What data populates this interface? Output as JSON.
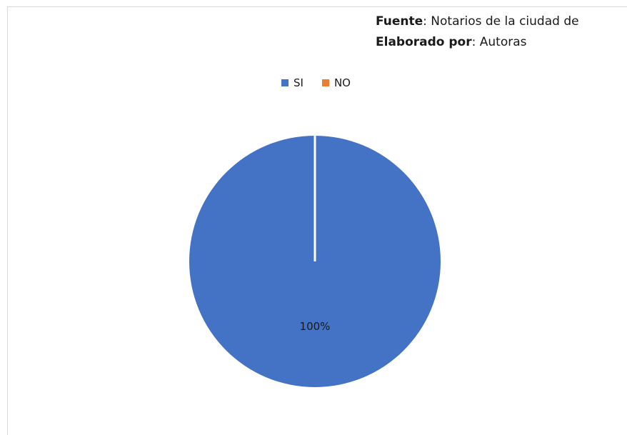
{
  "source_note": {
    "source_label": "Fuente",
    "source_text": ": Notarios de la ciudad de",
    "author_label": "Elaborado por",
    "author_text": ": Autoras"
  },
  "chart_data": {
    "type": "pie",
    "title": "",
    "categories": [
      "SI",
      "NO"
    ],
    "values": [
      100,
      0
    ],
    "colors": [
      "#4472c4",
      "#ed7d31"
    ],
    "data_labels": [
      "100%",
      ""
    ],
    "legend_position": "top"
  }
}
